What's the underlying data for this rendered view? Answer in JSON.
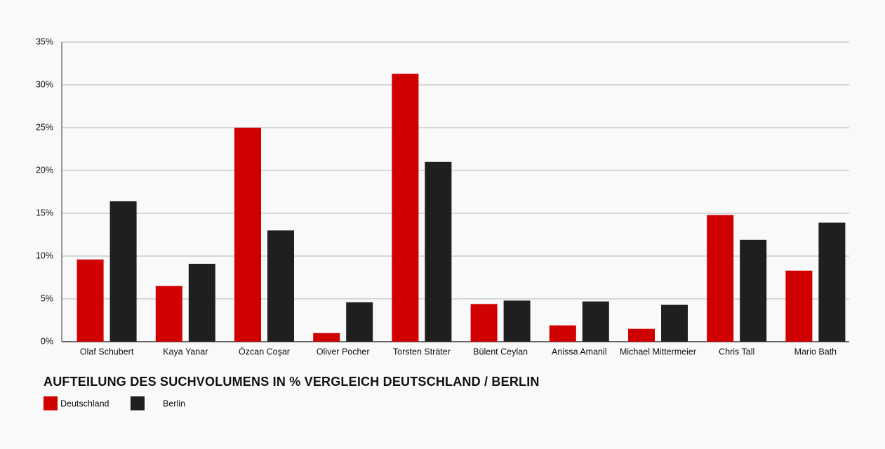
{
  "chart_data": {
    "type": "bar",
    "title": "AUFTEILUNG DES SUCHVOLUMENS IN % VERGLEICH DEUTSCHLAND / BERLIN",
    "categories": [
      "Olaf Schubert",
      "Kaya Yanar",
      "Özcan Coşar",
      "Oliver Pocher",
      "Torsten Sträter",
      "Bülent Ceylan",
      "Anissa Amanil",
      "Michael Mittermeier",
      "Chris Tall",
      "Mario Bath"
    ],
    "series": [
      {
        "name": "Deutschland",
        "color": "#d10000",
        "values": [
          9.6,
          6.5,
          25,
          1.0,
          31.3,
          4.4,
          1.9,
          1.5,
          14.8,
          8.3
        ]
      },
      {
        "name": "Berlin",
        "color": "#1f1f1f",
        "values": [
          16.4,
          9.1,
          13.0,
          4.6,
          21.0,
          4.8,
          4.7,
          4.3,
          11.9,
          13.9
        ]
      }
    ],
    "ylim": [
      0,
      35
    ],
    "yticks": [
      {
        "value": 0,
        "label": "0%"
      },
      {
        "value": 5,
        "label": "5%"
      },
      {
        "value": 10,
        "label": "10%"
      },
      {
        "value": 15,
        "label": "15%"
      },
      {
        "value": 20,
        "label": "20%"
      },
      {
        "value": 25,
        "label": "25%"
      },
      {
        "value": 30,
        "label": "30%"
      },
      {
        "value": 35,
        "label": "35%"
      }
    ],
    "grid": true,
    "legend": "bottom-left"
  }
}
